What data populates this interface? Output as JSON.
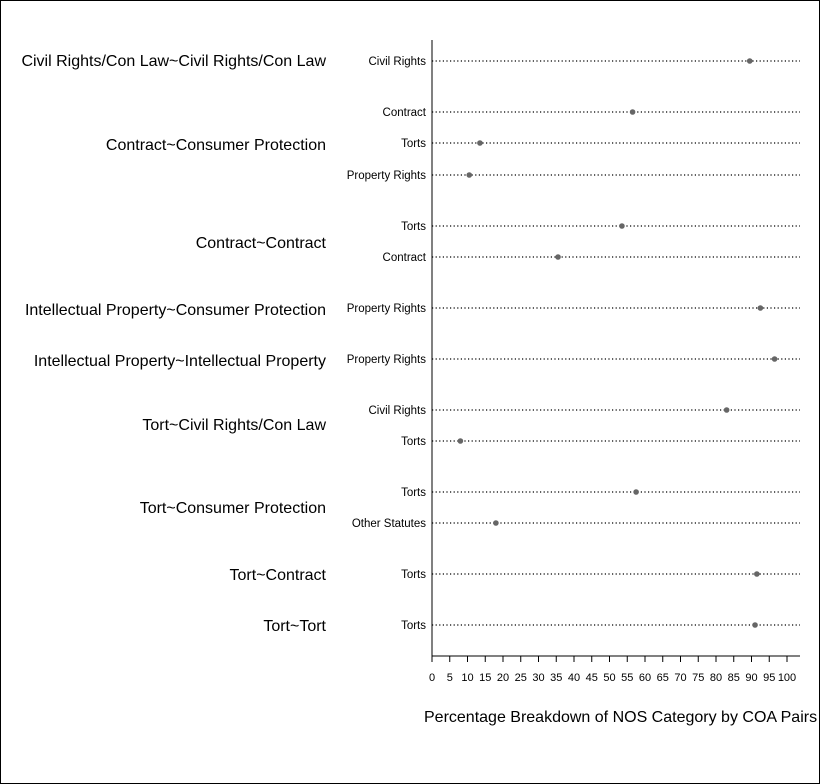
{
  "chart_data": {
    "type": "scatter",
    "subtype": "dot-plot",
    "xlabel": "Percentage Breakdown of NOS Category by COA Pairs",
    "xlim": [
      0,
      100
    ],
    "xticks": [
      0,
      5,
      10,
      15,
      20,
      25,
      30,
      35,
      40,
      45,
      50,
      55,
      60,
      65,
      70,
      75,
      80,
      85,
      90,
      95,
      100
    ],
    "grid": "dotted horizontal guide lines per row",
    "marker_color": "#666666",
    "groups": [
      {
        "name": "Civil Rights/Con Law~Civil Rights/Con Law",
        "rows": [
          {
            "label": "Civil Rights",
            "value": 89.5
          }
        ]
      },
      {
        "name": "Contract~Consumer Protection",
        "rows": [
          {
            "label": "Contract",
            "value": 56.5
          },
          {
            "label": "Torts",
            "value": 13.5
          },
          {
            "label": "Property Rights",
            "value": 10.5
          }
        ]
      },
      {
        "name": "Contract~Contract",
        "rows": [
          {
            "label": "Torts",
            "value": 53.5
          },
          {
            "label": "Contract",
            "value": 35.5
          }
        ]
      },
      {
        "name": "Intellectual Property~Consumer Protection",
        "rows": [
          {
            "label": "Property Rights",
            "value": 92.5
          }
        ]
      },
      {
        "name": "Intellectual Property~Intellectual Property",
        "rows": [
          {
            "label": "Property Rights",
            "value": 96.5
          }
        ]
      },
      {
        "name": "Tort~Civil Rights/Con Law",
        "rows": [
          {
            "label": "Civil Rights",
            "value": 83.0
          },
          {
            "label": "Torts",
            "value": 8.0
          }
        ]
      },
      {
        "name": "Tort~Consumer Protection",
        "rows": [
          {
            "label": "Torts",
            "value": 57.5
          },
          {
            "label": "Other Statutes",
            "value": 18.0
          }
        ]
      },
      {
        "name": "Tort~Contract",
        "rows": [
          {
            "label": "Torts",
            "value": 91.5
          }
        ]
      },
      {
        "name": "Tort~Tort",
        "rows": [
          {
            "label": "Torts",
            "value": 91.0
          }
        ]
      }
    ]
  }
}
